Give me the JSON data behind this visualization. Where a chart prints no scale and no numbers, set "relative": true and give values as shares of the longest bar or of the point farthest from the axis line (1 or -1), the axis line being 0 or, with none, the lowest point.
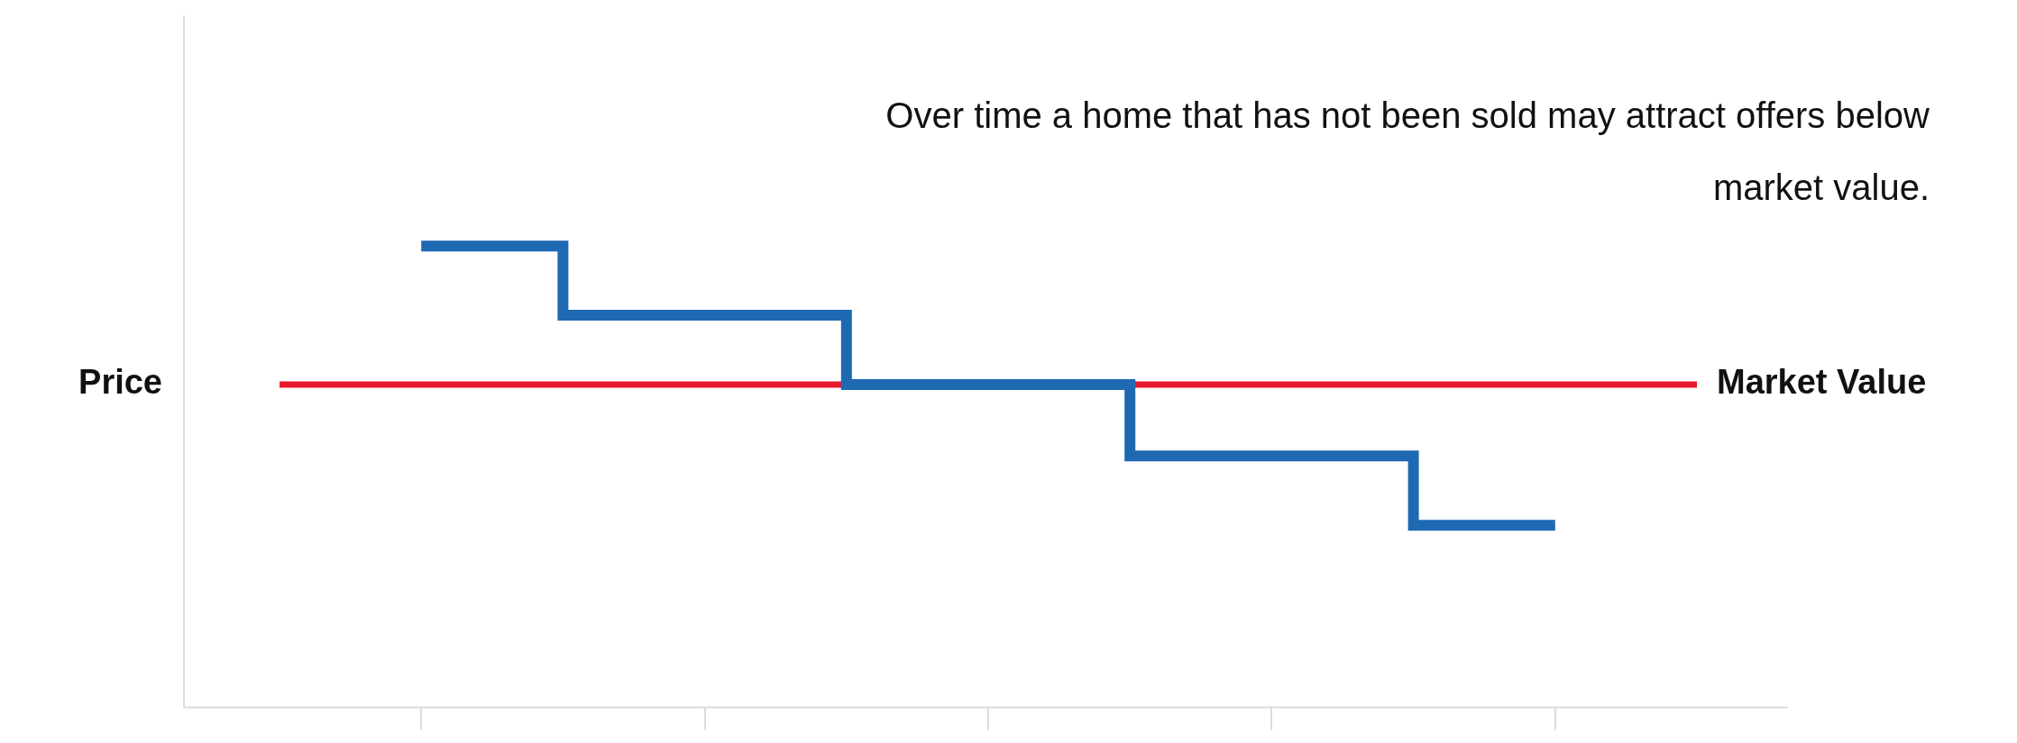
{
  "chart_data": {
    "type": "step",
    "relative": true,
    "ylabel": "Price",
    "categories": [
      null,
      null,
      null,
      null,
      null
    ],
    "series": [
      {
        "color": "#1f69b3",
        "values": [
          1,
          0.85,
          0.7,
          0.545,
          0.395
        ]
      }
    ],
    "ref_lines": [
      {
        "axis": "y",
        "value": 0.7,
        "label": "Market Value",
        "color": "#e8192c"
      }
    ],
    "annotations": [
      "Over time a home that has not been sold may attract offers below market value."
    ],
    "legend": false,
    "grid": false,
    "marker": "none",
    "line_style": "solid"
  }
}
